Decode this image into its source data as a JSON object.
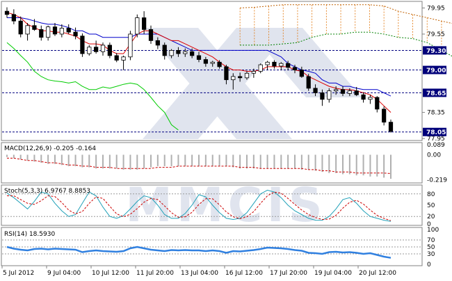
{
  "chart_data": [
    {
      "panel": "price",
      "type": "line",
      "subtype": "candlestick_with_ichimoku",
      "ylim": [
        77.93,
        80.04
      ],
      "y_ticks": [
        "79.95",
        "79.55",
        "78.35",
        "77.95"
      ],
      "levels": [
        {
          "label": "79.30",
          "value": 79.3
        },
        {
          "label": "79.00",
          "value": 79.0
        },
        {
          "label": "78.65",
          "value": 78.65
        },
        {
          "label": "78.05",
          "value": 78.05
        }
      ],
      "candles": [
        [
          79.9,
          79.96,
          79.8,
          79.85
        ],
        [
          79.85,
          79.93,
          79.7,
          79.75
        ],
        [
          79.75,
          79.82,
          79.5,
          79.55
        ],
        [
          79.55,
          79.72,
          79.45,
          79.68
        ],
        [
          79.68,
          79.78,
          79.6,
          79.62
        ],
        [
          79.62,
          79.68,
          79.45,
          79.5
        ],
        [
          79.5,
          79.68,
          79.45,
          79.66
        ],
        [
          79.66,
          79.72,
          79.52,
          79.55
        ],
        [
          79.55,
          79.7,
          79.5,
          79.64
        ],
        [
          79.64,
          79.7,
          79.55,
          79.58
        ],
        [
          79.58,
          79.65,
          79.47,
          79.52
        ],
        [
          79.52,
          79.56,
          79.2,
          79.25
        ],
        [
          79.25,
          79.38,
          79.22,
          79.35
        ],
        [
          79.35,
          79.45,
          79.25,
          79.28
        ],
        [
          79.28,
          79.42,
          79.22,
          79.38
        ],
        [
          79.38,
          79.42,
          79.18,
          79.22
        ],
        [
          79.22,
          79.26,
          79.12,
          79.15
        ],
        [
          79.15,
          79.22,
          79.0,
          79.2
        ],
        [
          79.2,
          79.6,
          79.15,
          79.55
        ],
        [
          79.55,
          79.85,
          79.5,
          79.8
        ],
        [
          79.8,
          79.9,
          79.55,
          79.62
        ],
        [
          79.62,
          79.68,
          79.4,
          79.45
        ],
        [
          79.45,
          79.5,
          79.32,
          79.38
        ],
        [
          79.38,
          79.42,
          79.16,
          79.22
        ],
        [
          79.22,
          79.32,
          79.18,
          79.3
        ],
        [
          79.3,
          79.35,
          79.2,
          79.25
        ],
        [
          79.25,
          79.33,
          79.2,
          79.28
        ],
        [
          79.28,
          79.33,
          79.18,
          79.22
        ],
        [
          79.22,
          79.28,
          79.12,
          79.16
        ],
        [
          79.16,
          79.2,
          79.05,
          79.1
        ],
        [
          79.1,
          79.14,
          79.05,
          79.12
        ],
        [
          79.12,
          79.15,
          79.02,
          79.05
        ],
        [
          79.05,
          79.08,
          78.78,
          78.85
        ],
        [
          78.85,
          78.95,
          78.7,
          78.9
        ],
        [
          78.9,
          78.96,
          78.82,
          78.88
        ],
        [
          78.88,
          78.98,
          78.85,
          78.95
        ],
        [
          78.95,
          79.02,
          78.88,
          78.98
        ],
        [
          78.98,
          79.1,
          78.95,
          79.08
        ],
        [
          79.08,
          79.14,
          79.0,
          79.12
        ],
        [
          79.12,
          79.15,
          79.02,
          79.06
        ],
        [
          79.06,
          79.12,
          79.0,
          79.1
        ],
        [
          79.1,
          79.14,
          79.0,
          79.04
        ],
        [
          79.04,
          79.08,
          78.95,
          79.0
        ],
        [
          79.0,
          79.05,
          78.88,
          78.9
        ],
        [
          78.9,
          78.94,
          78.68,
          78.72
        ],
        [
          78.72,
          78.78,
          78.6,
          78.65
        ],
        [
          78.65,
          78.7,
          78.45,
          78.55
        ],
        [
          78.55,
          78.72,
          78.5,
          78.68
        ],
        [
          78.68,
          78.75,
          78.62,
          78.7
        ],
        [
          78.7,
          78.75,
          78.6,
          78.64
        ],
        [
          78.64,
          78.72,
          78.6,
          78.68
        ],
        [
          78.68,
          78.74,
          78.6,
          78.62
        ],
        [
          78.62,
          78.66,
          78.5,
          78.55
        ],
        [
          78.55,
          78.62,
          78.48,
          78.58
        ],
        [
          78.58,
          78.6,
          78.35,
          78.4
        ],
        [
          78.4,
          78.44,
          78.15,
          78.2
        ],
        [
          78.2,
          78.24,
          78.04,
          78.06
        ]
      ],
      "tenkan": [
        79.88,
        79.85,
        79.8,
        79.7,
        79.65,
        79.6,
        79.6,
        79.58,
        79.58,
        79.55,
        79.52,
        79.45,
        79.4,
        79.4,
        79.38,
        79.3,
        79.25,
        79.25,
        79.4,
        79.55,
        79.6,
        79.6,
        79.55,
        79.5,
        79.45,
        79.45,
        79.4,
        79.35,
        79.3,
        79.25,
        79.2,
        79.12,
        79.05,
        79.0,
        79.0,
        78.98,
        78.98,
        79.0,
        79.05,
        79.05,
        79.05,
        79.05,
        79.0,
        78.98,
        78.9,
        78.85,
        78.8,
        78.75,
        78.72,
        78.7,
        78.7,
        78.68,
        78.65,
        78.62,
        78.55,
        78.45,
        78.35
      ],
      "kijun": [
        79.8,
        79.8,
        79.8,
        79.78,
        79.75,
        79.72,
        79.7,
        79.7,
        79.68,
        79.65,
        79.6,
        79.6,
        79.55,
        79.55,
        79.5,
        79.5,
        79.5,
        79.5,
        79.5,
        79.55,
        79.55,
        79.55,
        79.55,
        79.5,
        79.45,
        79.4,
        79.35,
        79.3,
        79.3,
        79.3,
        79.3,
        79.3,
        79.3,
        79.3,
        79.3,
        79.3,
        79.3,
        79.3,
        79.3,
        79.25,
        79.2,
        79.1,
        79.05,
        79.0,
        78.98,
        78.95,
        78.85,
        78.8,
        78.8,
        78.75,
        78.75,
        78.72,
        78.7,
        78.7,
        78.7,
        78.65,
        78.6
      ],
      "chikou": [
        79.42,
        79.33,
        79.22,
        79.12,
        78.98,
        78.9,
        78.85,
        78.83,
        78.82,
        78.8,
        78.82,
        78.75,
        78.7,
        78.7,
        78.74,
        78.72,
        78.75,
        78.78,
        78.8,
        78.78,
        78.7,
        78.58,
        78.45,
        78.35,
        78.16,
        78.08
      ],
      "span_a": [
        79.95,
        79.96,
        79.98,
        80.0,
        80.0,
        80.0,
        80.0,
        80.0,
        80.0,
        80.0,
        79.98,
        79.9,
        79.85,
        79.8,
        79.75,
        79.7,
        79.65,
        79.6,
        79.5,
        79.4
      ],
      "span_b": [
        79.38,
        79.38,
        79.38,
        79.4,
        79.42,
        79.5,
        79.55,
        79.55,
        79.58,
        79.58,
        79.55,
        79.5,
        79.48,
        79.42,
        79.3,
        79.18,
        79.16,
        79.14,
        79.13,
        79.12
      ]
    },
    {
      "panel": "macd",
      "type": "bar",
      "title": "MACD(12,26,9) -0.205 -0.164",
      "y_ticks": [
        "0.089",
        "0.00",
        "-0.219"
      ],
      "ylim": [
        -0.24,
        0.1
      ],
      "values": [
        -0.02,
        -0.03,
        -0.04,
        -0.05,
        -0.06,
        -0.07,
        -0.08,
        -0.08,
        -0.09,
        -0.1,
        -0.1,
        -0.11,
        -0.11,
        -0.12,
        -0.12,
        -0.12,
        -0.12,
        -0.13,
        -0.13,
        -0.13,
        -0.12,
        -0.11,
        -0.1,
        -0.1,
        -0.1,
        -0.1,
        -0.1,
        -0.1,
        -0.1,
        -0.1,
        -0.1,
        -0.1,
        -0.1,
        -0.11,
        -0.12,
        -0.12,
        -0.12,
        -0.12,
        -0.12,
        -0.12,
        -0.12,
        -0.12,
        -0.12,
        -0.13,
        -0.13,
        -0.14,
        -0.15,
        -0.16,
        -0.16,
        -0.17,
        -0.17,
        -0.18,
        -0.18,
        -0.19,
        -0.19,
        -0.2,
        -0.21
      ],
      "signal": [
        -0.03,
        -0.03,
        -0.04,
        -0.05,
        -0.05,
        -0.06,
        -0.07,
        -0.07,
        -0.08,
        -0.09,
        -0.09,
        -0.1,
        -0.1,
        -0.11,
        -0.11,
        -0.11,
        -0.12,
        -0.12,
        -0.12,
        -0.12,
        -0.12,
        -0.12,
        -0.11,
        -0.11,
        -0.11,
        -0.1,
        -0.1,
        -0.1,
        -0.1,
        -0.1,
        -0.1,
        -0.1,
        -0.1,
        -0.1,
        -0.11,
        -0.11,
        -0.11,
        -0.12,
        -0.12,
        -0.12,
        -0.12,
        -0.12,
        -0.12,
        -0.12,
        -0.13,
        -0.13,
        -0.14,
        -0.14,
        -0.15,
        -0.15,
        -0.15,
        -0.16,
        -0.16,
        -0.16,
        -0.16,
        -0.16,
        -0.164
      ]
    },
    {
      "panel": "stochastic",
      "type": "line",
      "title": "Stoch(5,3,3) 6.9767 8.8853",
      "y_ticks": [
        "80",
        "50",
        "20",
        "0"
      ],
      "ylim": [
        0,
        100
      ],
      "levels": [
        80,
        20
      ],
      "k": [
        82,
        70,
        55,
        40,
        60,
        85,
        80,
        55,
        35,
        20,
        25,
        55,
        85,
        75,
        45,
        20,
        15,
        22,
        40,
        60,
        75,
        70,
        50,
        25,
        15,
        15,
        28,
        50,
        78,
        72,
        50,
        30,
        15,
        12,
        15,
        30,
        55,
        80,
        90,
        85,
        70,
        50,
        35,
        25,
        15,
        10,
        10,
        20,
        40,
        65,
        70,
        55,
        35,
        20,
        15,
        10,
        7
      ],
      "d": [
        75,
        75,
        65,
        55,
        52,
        62,
        75,
        73,
        57,
        37,
        27,
        33,
        55,
        72,
        68,
        47,
        27,
        19,
        26,
        41,
        58,
        68,
        65,
        48,
        30,
        18,
        19,
        31,
        52,
        67,
        67,
        51,
        32,
        19,
        14,
        19,
        33,
        55,
        75,
        85,
        82,
        68,
        52,
        37,
        25,
        17,
        12,
        13,
        23,
        42,
        58,
        63,
        53,
        37,
        23,
        15,
        8.9
      ]
    },
    {
      "panel": "rsi",
      "type": "line",
      "title": "RSI(14) 18.5930",
      "y_ticks": [
        "100",
        "70",
        "50",
        "30",
        "0"
      ],
      "ylim": [
        0,
        100
      ],
      "levels": [
        70,
        50,
        30
      ],
      "values": [
        50,
        45,
        42,
        40,
        44,
        45,
        43,
        45,
        44,
        43,
        42,
        35,
        38,
        40,
        38,
        37,
        36,
        38,
        46,
        50,
        46,
        42,
        40,
        38,
        41,
        40,
        41,
        40,
        40,
        38,
        40,
        38,
        33,
        38,
        37,
        39,
        41,
        44,
        48,
        47,
        46,
        44,
        41,
        39,
        33,
        32,
        30,
        35,
        36,
        34,
        35,
        33,
        30,
        32,
        27,
        22,
        18.6
      ]
    }
  ],
  "x_ticks": [
    "5 Jul 2012",
    "9 Jul 04:00",
    "10 Jul 12:00",
    "11 Jul 20:00",
    "13 Jul 04:00",
    "16 Jul 12:00",
    "17 Jul 20:00",
    "19 Jul 04:00",
    "20 Jul 12:00"
  ],
  "watermark": "MMCIS",
  "colors": {
    "frame": "#808080",
    "grid": "#d8d8d8",
    "candle": "#000000",
    "tenkan": "#dd0000",
    "kijun": "#0000cc",
    "chikou": "#00cc00",
    "span_a": "#c06000",
    "span_b": "#008000",
    "cloud": "#e07000",
    "level_line": "#000080",
    "level_label_bg": "#00007a",
    "macd_hist": "#b0b0b0",
    "macd_signal": "#cc0000",
    "stoch_k": "#20a0b8",
    "stoch_d": "#cc0000",
    "rsi": "#3080e0"
  }
}
